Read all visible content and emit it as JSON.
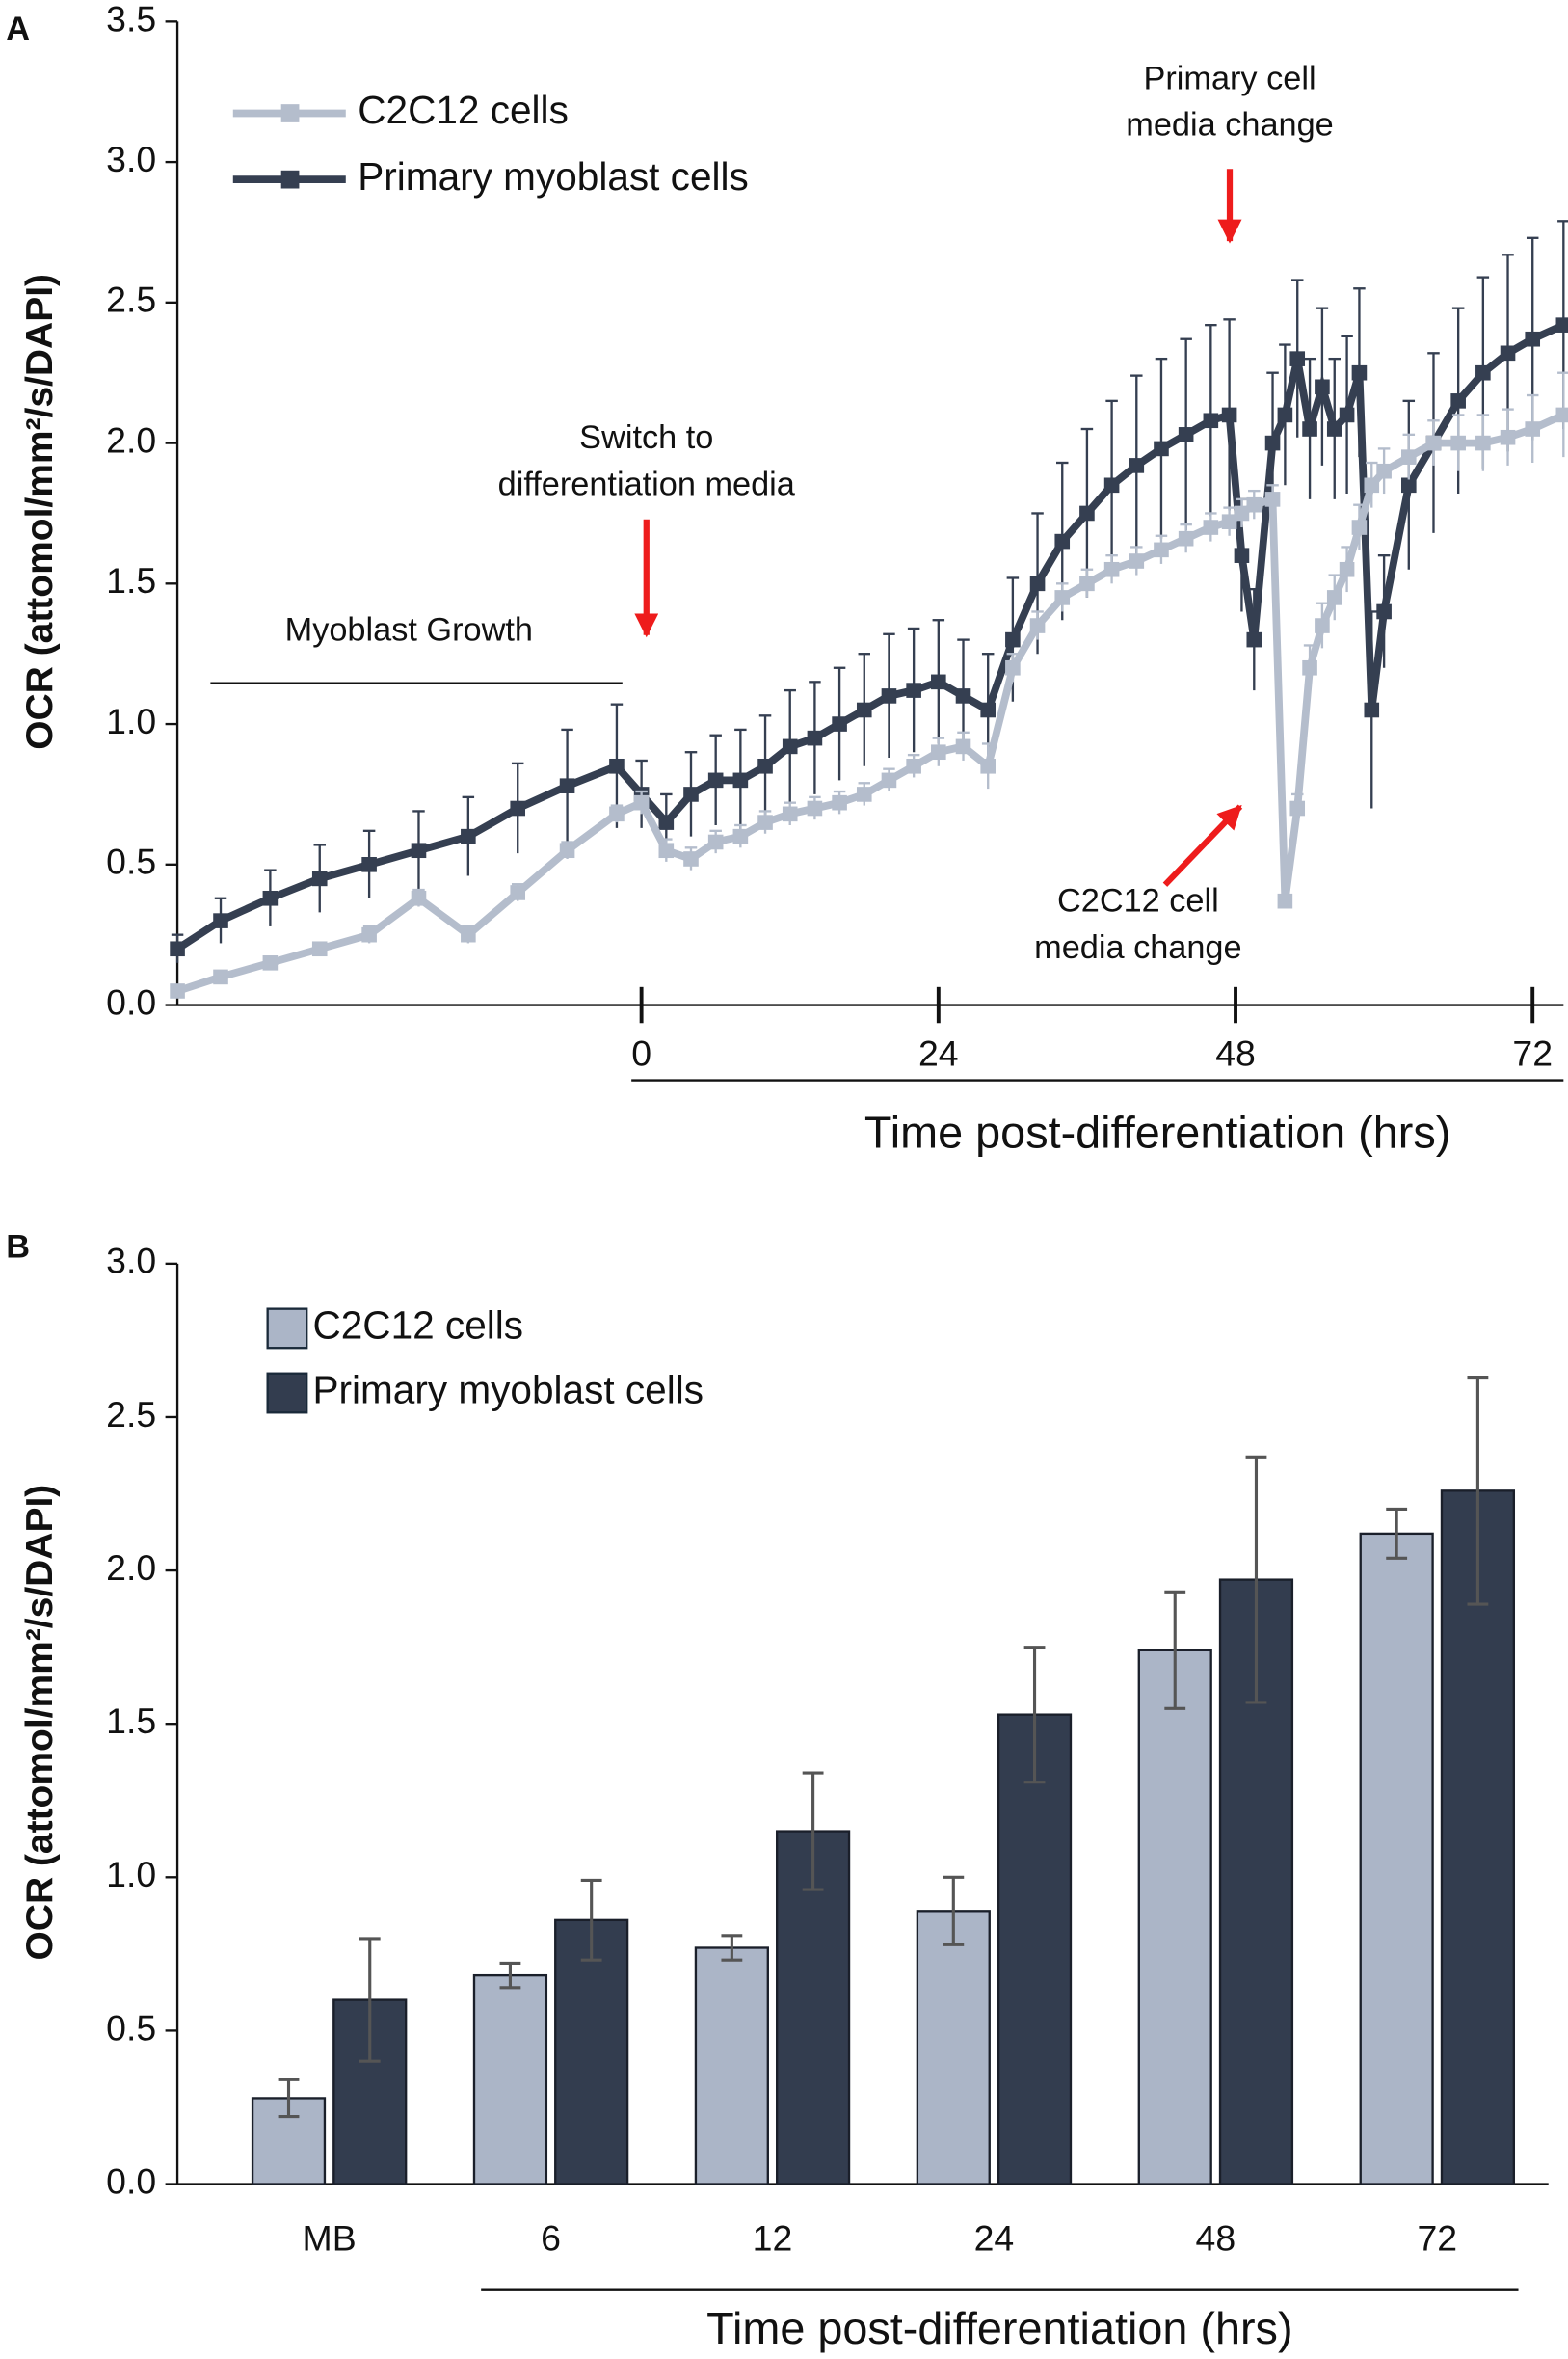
{
  "chart_data": [
    {
      "type": "line",
      "panel": "A",
      "ylabel": "OCR (attomol/mm²/s/DAPI)",
      "xlabel": "Time post-differentiation (hrs)",
      "xlim": [
        -37.5,
        74.5
      ],
      "xticks": [
        0,
        24,
        48,
        72
      ],
      "ylim": [
        0,
        3.5
      ],
      "yticks": [
        {
          "value": 0,
          "label": "0.0"
        },
        0.5,
        {
          "value": 1,
          "label": "1.0"
        },
        1.5,
        {
          "value": 2,
          "label": "2.0"
        },
        2.5,
        {
          "value": 3,
          "label": "3.0"
        },
        3.5
      ],
      "x": [
        -37.5,
        -34,
        -30,
        -26,
        -22,
        -18,
        -14,
        -10,
        -6,
        -2,
        0,
        2,
        4,
        6,
        8,
        10,
        12,
        14,
        16,
        18,
        20,
        22,
        24,
        26,
        28,
        30,
        32,
        34,
        36,
        38,
        40,
        42,
        44,
        46,
        47.5,
        48.5,
        49.5,
        51,
        52,
        53,
        54,
        55,
        56,
        57,
        58,
        59,
        60,
        62,
        64,
        66,
        68,
        70,
        72,
        74.5
      ],
      "series": [
        {
          "name": "C2C12 cells",
          "color": "#b4bdcc",
          "values": [
            0.05,
            0.1,
            0.15,
            0.2,
            0.25,
            0.38,
            0.25,
            0.4,
            0.55,
            0.68,
            0.72,
            0.55,
            0.52,
            0.58,
            0.6,
            0.65,
            0.68,
            0.7,
            0.72,
            0.75,
            0.8,
            0.85,
            0.9,
            0.92,
            0.85,
            1.2,
            1.35,
            1.45,
            1.5,
            1.55,
            1.58,
            1.62,
            1.66,
            1.7,
            1.72,
            1.75,
            1.78,
            1.8,
            0.37,
            0.7,
            1.2,
            1.35,
            1.45,
            1.55,
            1.7,
            1.85,
            1.9,
            1.95,
            2.0,
            2.0,
            2.0,
            2.02,
            2.05,
            2.1
          ],
          "errors": [
            0.02,
            0.02,
            0.02,
            0.02,
            0.03,
            0.03,
            0.03,
            0.03,
            0.03,
            0.03,
            0.04,
            0.04,
            0.04,
            0.04,
            0.04,
            0.04,
            0.04,
            0.04,
            0.04,
            0.04,
            0.04,
            0.04,
            0.05,
            0.05,
            0.08,
            0.05,
            0.05,
            0.05,
            0.05,
            0.05,
            0.05,
            0.05,
            0.05,
            0.05,
            0.05,
            0.05,
            0.05,
            0.05,
            0.02,
            0.05,
            0.08,
            0.08,
            0.08,
            0.08,
            0.08,
            0.08,
            0.08,
            0.08,
            0.08,
            0.1,
            0.1,
            0.1,
            0.12,
            0.15
          ]
        },
        {
          "name": "Primary myoblast cells",
          "color": "#353f51",
          "values": [
            0.2,
            0.3,
            0.38,
            0.45,
            0.5,
            0.55,
            0.6,
            0.7,
            0.78,
            0.85,
            0.75,
            0.65,
            0.75,
            0.8,
            0.8,
            0.85,
            0.92,
            0.95,
            1.0,
            1.05,
            1.1,
            1.12,
            1.15,
            1.1,
            1.05,
            1.3,
            1.5,
            1.65,
            1.75,
            1.85,
            1.92,
            1.98,
            2.03,
            2.08,
            2.1,
            1.6,
            1.3,
            2.0,
            2.1,
            2.3,
            2.05,
            2.2,
            2.05,
            2.1,
            2.25,
            1.05,
            1.4,
            1.85,
            2.0,
            2.15,
            2.25,
            2.32,
            2.37,
            2.42
          ],
          "errors": [
            0.05,
            0.08,
            0.1,
            0.12,
            0.12,
            0.14,
            0.14,
            0.16,
            0.2,
            0.22,
            0.12,
            0.1,
            0.15,
            0.16,
            0.18,
            0.18,
            0.2,
            0.2,
            0.2,
            0.2,
            0.22,
            0.22,
            0.22,
            0.2,
            0.2,
            0.22,
            0.25,
            0.28,
            0.3,
            0.3,
            0.32,
            0.32,
            0.34,
            0.34,
            0.34,
            0.2,
            0.18,
            0.25,
            0.25,
            0.28,
            0.25,
            0.28,
            0.25,
            0.28,
            0.3,
            0.35,
            0.2,
            0.3,
            0.32,
            0.33,
            0.34,
            0.35,
            0.36,
            0.37
          ]
        }
      ],
      "annotations": [
        {
          "text": [
            "Myoblast Growth"
          ]
        },
        {
          "text": [
            "Switch to",
            "differentiation media"
          ]
        },
        {
          "text": [
            "Primary cell",
            "media change"
          ]
        },
        {
          "text": [
            "C2C12 cell",
            "media change"
          ]
        }
      ]
    },
    {
      "type": "bar",
      "panel": "B",
      "ylabel": "OCR (attomol/mm²/s/DAPI)",
      "xlabel": "Time post-differentiation (hrs)",
      "categories": [
        "MB",
        "6",
        "12",
        "24",
        "48",
        "72"
      ],
      "ylim": [
        0,
        3
      ],
      "yticks": [
        {
          "value": 0,
          "label": "0.0"
        },
        0.5,
        {
          "value": 1,
          "label": "1.0"
        },
        1.5,
        {
          "value": 2,
          "label": "2.0"
        },
        2.5,
        {
          "value": 3,
          "label": "3.0"
        }
      ],
      "series": [
        {
          "name": "C2C12 cells",
          "color": "#abb5c7",
          "values": [
            0.28,
            0.68,
            0.77,
            0.89,
            1.74,
            2.12
          ],
          "errors": [
            0.06,
            0.04,
            0.04,
            0.11,
            0.19,
            0.08
          ]
        },
        {
          "name": "Primary myoblast cells",
          "color": "#333d4f",
          "values": [
            0.6,
            0.86,
            1.15,
            1.53,
            1.97,
            2.26
          ],
          "errors": [
            0.2,
            0.13,
            0.19,
            0.22,
            0.4,
            0.37
          ]
        }
      ]
    }
  ]
}
